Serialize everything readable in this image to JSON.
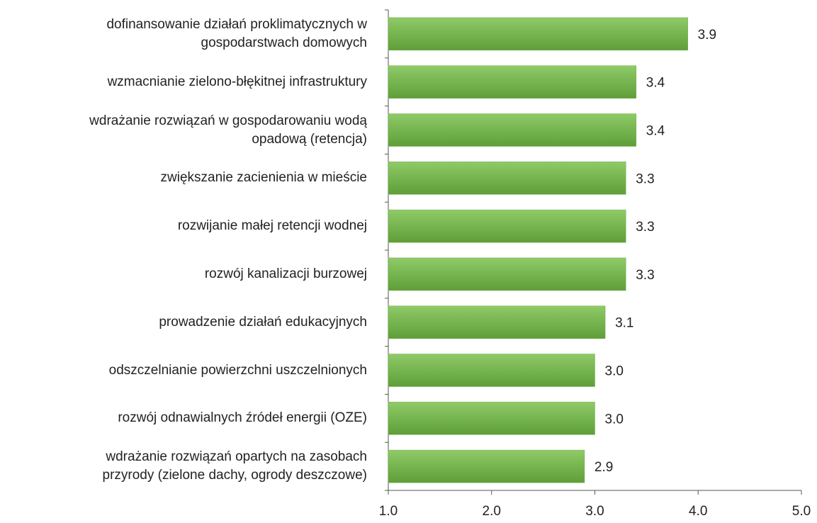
{
  "chart_data": {
    "type": "barh",
    "categories": [
      "dofinansowanie działań proklimatycznych w\ngospodarstwach domowych",
      "wzmacnianie zielono-błękitnej infrastruktury",
      "wdrażanie rozwiązań w gospodarowaniu wodą\nopadową (retencja)",
      "zwiększanie zacienienia w mieście",
      "rozwijanie małej retencji wodnej",
      "rozwój kanalizacji burzowej",
      "prowadzenie działań edukacyjnych",
      "odszczelnianie powierzchni uszczelnionych",
      "rozwój odnawialnych źródeł energii (OZE)",
      "wdrażanie rozwiązań opartych na zasobach\nprzyrody (zielone dachy, ogrody deszczowe)"
    ],
    "values": [
      3.9,
      3.4,
      3.4,
      3.3,
      3.3,
      3.3,
      3.1,
      3.0,
      3.0,
      2.9
    ],
    "value_labels": [
      "3.9",
      "3.4",
      "3.4",
      "3.3",
      "3.3",
      "3.3",
      "3.1",
      "3.0",
      "3.0",
      "2.9"
    ],
    "color": "#70ad47",
    "xlim": [
      1,
      5
    ],
    "xticks": [
      {
        "value": 1,
        "label": "1.0"
      },
      {
        "value": 2,
        "label": "2.0"
      },
      {
        "value": 3,
        "label": "3.0"
      },
      {
        "value": 4,
        "label": "4.0"
      },
      {
        "value": 5,
        "label": "5.0"
      }
    ]
  }
}
